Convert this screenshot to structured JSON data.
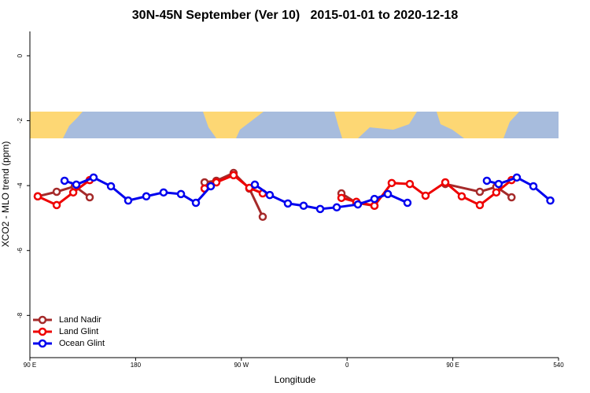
{
  "chart_data": {
    "type": "line",
    "title": "30N-45N September (Ver 10)   2015-01-01 to 2020-12-18",
    "x_label": "Longitude",
    "y_label": "XCO2 - MLO trend (ppm)",
    "xlim": [
      90,
      540
    ],
    "ylim": [
      -9.3,
      0.75
    ],
    "xticks": [
      {
        "value": 90,
        "label": "90 E"
      },
      180,
      {
        "value": 270,
        "label": "90 W"
      },
      {
        "value": 360,
        "label": "0"
      },
      {
        "value": 450,
        "label": "90 E"
      },
      540
    ],
    "yticks": [
      0,
      -2,
      -4,
      -6,
      -8
    ],
    "legend": "bottom-left",
    "series": [
      {
        "name": "Land Nadir",
        "color": "#a52a2a",
        "x": [
          96.7,
          112.8,
          128.2,
          140.9,
          null,
          238.7,
          248.7,
          263.4,
          276.8,
          288.2,
          null,
          355.2,
          367.9,
          383.3,
          null,
          443.6,
          473,
          487,
          500
        ],
        "values": [
          -4.33,
          -4.19,
          -4.02,
          -4.36,
          null,
          -3.9,
          -3.85,
          -3.61,
          -4.09,
          -4.96,
          null,
          -4.24,
          -4.53,
          -4.62,
          null,
          -3.95,
          -4.19,
          -4.04,
          -4.36
        ]
      },
      {
        "name": "Land Glint",
        "color": "#ee0000",
        "x": [
          96.7,
          112.8,
          126.9,
          140.9,
          null,
          238.7,
          248.7,
          263.4,
          276.8,
          288.2,
          null,
          355.2,
          367.9,
          383.3,
          398,
          413.4,
          426.8,
          443.6,
          457.6,
          473,
          487,
          500
        ],
        "values": [
          -4.33,
          -4.6,
          -4.21,
          -3.83,
          null,
          -4.09,
          -3.9,
          -3.68,
          -4.07,
          -4.24,
          null,
          -4.38,
          -4.5,
          -4.62,
          -3.92,
          -3.95,
          -4.31,
          -3.9,
          -4.33,
          -4.6,
          -4.21,
          -3.83
        ]
      },
      {
        "name": "Ocean Glint",
        "color": "#0000ee",
        "x": [
          119.5,
          129.5,
          144.2,
          159,
          173.7,
          189.1,
          203.8,
          218.6,
          231.3,
          244,
          null,
          281.5,
          294.2,
          309.6,
          323,
          337.1,
          351.2,
          369.2,
          383.3,
          394.7,
          411.4,
          null,
          479,
          489,
          504.5,
          518.6,
          533
        ],
        "values": [
          -3.85,
          -3.97,
          -3.75,
          -4.02,
          -4.46,
          -4.33,
          -4.21,
          -4.26,
          -4.53,
          -4.02,
          null,
          -3.97,
          -4.29,
          -4.55,
          -4.62,
          -4.72,
          -4.67,
          -4.58,
          -4.41,
          -4.26,
          -4.53,
          null,
          -3.85,
          -3.95,
          -3.75,
          -4.02,
          -4.46
        ]
      }
    ]
  }
}
